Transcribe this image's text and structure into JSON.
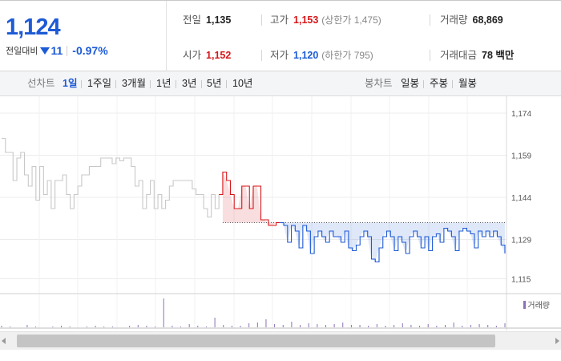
{
  "quote": {
    "current_price": "1,124",
    "change_label": "전일대비",
    "change_direction": "down",
    "change_icon": "down-triangle-icon",
    "change_amount": "11",
    "change_rate": "-0.97%",
    "up_color": "#d6161a",
    "down_color": "#1d5ad6"
  },
  "stats": {
    "prev_close": {
      "label": "전일",
      "value": "1,135"
    },
    "high": {
      "label": "고가",
      "value": "1,153",
      "limit_label": "(상한가 1,475)"
    },
    "volume": {
      "label": "거래량",
      "value": "68,869"
    },
    "open": {
      "label": "시가",
      "value": "1,152"
    },
    "low": {
      "label": "저가",
      "value": "1,120",
      "limit_label": "(하한가 795)"
    },
    "turnover": {
      "label": "거래대금",
      "value": "78 백만"
    }
  },
  "line_chart_bar": {
    "label": "선차트",
    "periods": [
      "1일",
      "1주일",
      "3개월",
      "1년",
      "3년",
      "5년",
      "10년"
    ],
    "active_period": "1일"
  },
  "candle_chart_bar": {
    "label": "봉차트",
    "intervals": [
      "일봉",
      "주봉",
      "월봉"
    ]
  },
  "chart_data": {
    "type": "line",
    "description_of_axes": "intraday price",
    "ylim": [
      1110,
      1180
    ],
    "yticks": [
      1115,
      1129,
      1144,
      1159,
      1174
    ],
    "ytick_labels": [
      "1,115",
      "1,129",
      "1,144",
      "1,159",
      "1,174"
    ],
    "prev_close": 1135,
    "series": [
      {
        "segment": "previous_day",
        "color": "#c8c8c8",
        "values": [
          1165,
          1160,
          1160,
          1150,
          1158,
          1160,
          1152,
          1148,
          1155,
          1143,
          1155,
          1145,
          1150,
          1140,
          1150,
          1150,
          1152,
          1145,
          1140,
          1145,
          1148,
          1152,
          1152,
          1155,
          1155,
          1155,
          1158,
          1158,
          1158,
          1156,
          1158,
          1157,
          1158,
          1158,
          1155,
          1148,
          1150,
          1140,
          1145,
          1150,
          1140,
          1145,
          1140,
          1143,
          1148,
          1150,
          1150,
          1150,
          1150,
          1150,
          1147,
          1145,
          1145,
          1140,
          1137,
          1145,
          1140,
          1145
        ]
      },
      {
        "segment": "today_above_prev_close",
        "color": "#d6161a",
        "values": [
          1153,
          1150,
          1145,
          1140,
          1140,
          1148,
          1148,
          1140,
          1148,
          1148,
          1136,
          1136,
          1134,
          1134,
          1135,
          1135
        ]
      },
      {
        "segment": "today_below_prev_close",
        "color": "#1d5ad6",
        "values": [
          1134,
          1128,
          1134,
          1132,
          1126,
          1134,
          1132,
          1124,
          1130,
          1132,
          1130,
          1128,
          1132,
          1130,
          1130,
          1128,
          1132,
          1126,
          1125,
          1127,
          1130,
          1132,
          1130,
          1122,
          1121,
          1126,
          1130,
          1132,
          1130,
          1125,
          1130,
          1128,
          1124,
          1130,
          1132,
          1130,
          1126,
          1130,
          1125,
          1130,
          1131,
          1128,
          1133,
          1132,
          1130,
          1125,
          1132,
          1133,
          1132,
          1131,
          1126,
          1132,
          1130,
          1132,
          1130,
          1132,
          1130,
          1127,
          1124
        ]
      }
    ],
    "volume": {
      "legend": "거래량",
      "color": "#8d6fb5",
      "values": [
        2,
        1,
        0,
        3,
        1,
        0,
        1,
        2,
        1,
        0,
        1,
        2,
        1,
        1,
        0,
        2,
        3,
        2,
        1,
        36,
        2,
        1,
        4,
        2,
        1,
        12,
        3,
        2,
        2,
        5,
        6,
        10,
        4,
        3,
        7,
        3,
        5,
        4,
        3,
        4,
        6,
        3,
        3,
        2,
        4,
        2,
        3,
        5,
        3,
        2,
        4,
        2,
        3,
        6,
        2,
        3,
        4,
        3,
        2,
        5
      ]
    }
  }
}
